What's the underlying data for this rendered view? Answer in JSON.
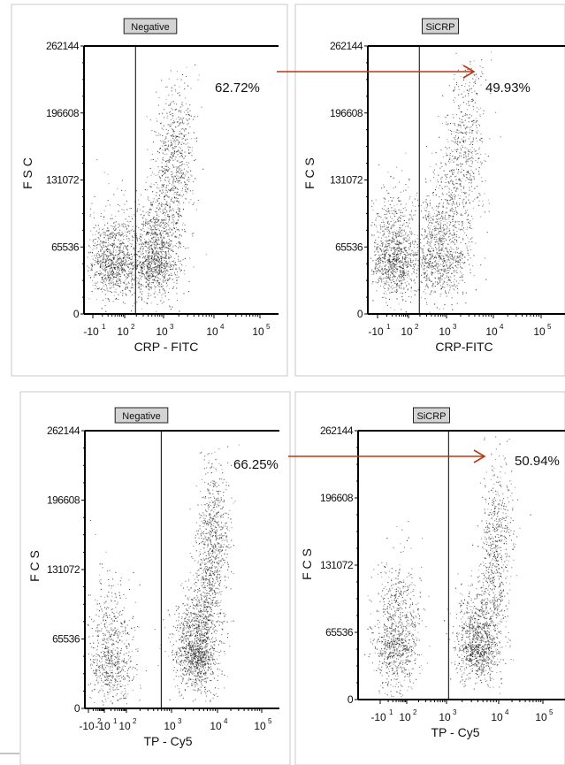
{
  "colors": {
    "arrow": "#b83a16",
    "dots": "#1a1a1a",
    "title_box": "#d4d4d4"
  },
  "chart_data": [
    {
      "type": "scatter",
      "title": "Negative",
      "xlabel": "CRP - FITC",
      "ylabel": "FSC",
      "percentage": "62.72%",
      "x_scale": "logicle",
      "ylim": [
        0,
        262144
      ],
      "yticks": [
        "262144",
        "196608",
        "131072",
        "65536",
        "0"
      ],
      "xticks": [
        {
          "base": "-10",
          "exp": "1"
        },
        {
          "base": "10",
          "exp": "2"
        },
        {
          "base": "10",
          "exp": "3"
        },
        {
          "base": "10",
          "exp": "4"
        },
        {
          "base": "10",
          "exp": "5"
        }
      ],
      "gate_x": 30,
      "clusters": [
        {
          "x_log_center": 0.6,
          "x_log_sd": 0.35,
          "y_center": 50000,
          "y_sd": 28000,
          "n": 900
        },
        {
          "x_log_center": 1.85,
          "x_log_sd": 0.35,
          "y_center": 55000,
          "y_sd": 30000,
          "n": 1100
        },
        {
          "x_log_center": 2.4,
          "x_log_sd": 0.3,
          "y_center": 140000,
          "y_sd": 45000,
          "n": 800
        }
      ]
    },
    {
      "type": "scatter",
      "title": "SiCRP",
      "xlabel": "CRP-FITC",
      "ylabel": "FCS",
      "percentage": "49.93%",
      "x_scale": "logicle",
      "ylim": [
        0,
        262144
      ],
      "yticks": [
        "262144",
        "196608",
        "131072",
        "65536",
        "0"
      ],
      "xticks": [
        {
          "base": "-10",
          "exp": "1"
        },
        {
          "base": "10",
          "exp": "2"
        },
        {
          "base": "10",
          "exp": "3"
        },
        {
          "base": "10",
          "exp": "4"
        },
        {
          "base": "10",
          "exp": "5"
        }
      ],
      "gate_x": 30,
      "clusters": [
        {
          "x_log_center": 0.5,
          "x_log_sd": 0.35,
          "y_center": 55000,
          "y_sd": 30000,
          "n": 1000
        },
        {
          "x_log_center": 1.9,
          "x_log_sd": 0.4,
          "y_center": 60000,
          "y_sd": 35000,
          "n": 900
        },
        {
          "x_log_center": 2.6,
          "x_log_sd": 0.35,
          "y_center": 150000,
          "y_sd": 50000,
          "n": 650
        }
      ]
    },
    {
      "type": "scatter",
      "title": "Negative",
      "xlabel": "TP - Cy5",
      "ylabel": "FCS",
      "percentage": "66.25%",
      "x_scale": "logicle",
      "ylim": [
        0,
        262144
      ],
      "yticks": [
        "262144",
        "196608",
        "131072",
        "65536",
        "0"
      ],
      "xticks": [
        {
          "base": "-10",
          "exp": "2"
        },
        {
          "base": "-10",
          "exp": "1"
        },
        {
          "base": "10",
          "exp": "2"
        },
        {
          "base": "10",
          "exp": "3"
        },
        {
          "base": "10",
          "exp": "4"
        },
        {
          "base": "10",
          "exp": "5"
        }
      ],
      "gate_x": 200,
      "clusters": [
        {
          "x_log_center": 0.6,
          "x_log_sd": 0.35,
          "y_center": 50000,
          "y_sd": 35000,
          "n": 700
        },
        {
          "x_log_center": 3.1,
          "x_log_sd": 0.3,
          "y_center": 55000,
          "y_sd": 28000,
          "n": 1200
        },
        {
          "x_log_center": 3.55,
          "x_log_sd": 0.25,
          "y_center": 145000,
          "y_sd": 45000,
          "n": 900
        }
      ]
    },
    {
      "type": "scatter",
      "title": "SiCRP",
      "xlabel": "TP - Cy5",
      "ylabel": "FCS",
      "percentage": "50.94%",
      "x_scale": "logicle",
      "ylim": [
        0,
        262144
      ],
      "yticks": [
        "262144",
        "196608",
        "131072",
        "65536",
        "0"
      ],
      "xticks": [
        {
          "base": "-10",
          "exp": "1"
        },
        {
          "base": "10",
          "exp": "2"
        },
        {
          "base": "10",
          "exp": "3"
        },
        {
          "base": "10",
          "exp": "4"
        },
        {
          "base": "10",
          "exp": "5"
        }
      ],
      "gate_x": 200,
      "clusters": [
        {
          "x_log_center": 0.5,
          "x_log_sd": 0.35,
          "y_center": 60000,
          "y_sd": 38000,
          "n": 900
        },
        {
          "x_log_center": 3.0,
          "x_log_sd": 0.35,
          "y_center": 55000,
          "y_sd": 28000,
          "n": 1000
        },
        {
          "x_log_center": 3.55,
          "x_log_sd": 0.25,
          "y_center": 140000,
          "y_sd": 45000,
          "n": 650
        }
      ]
    }
  ]
}
